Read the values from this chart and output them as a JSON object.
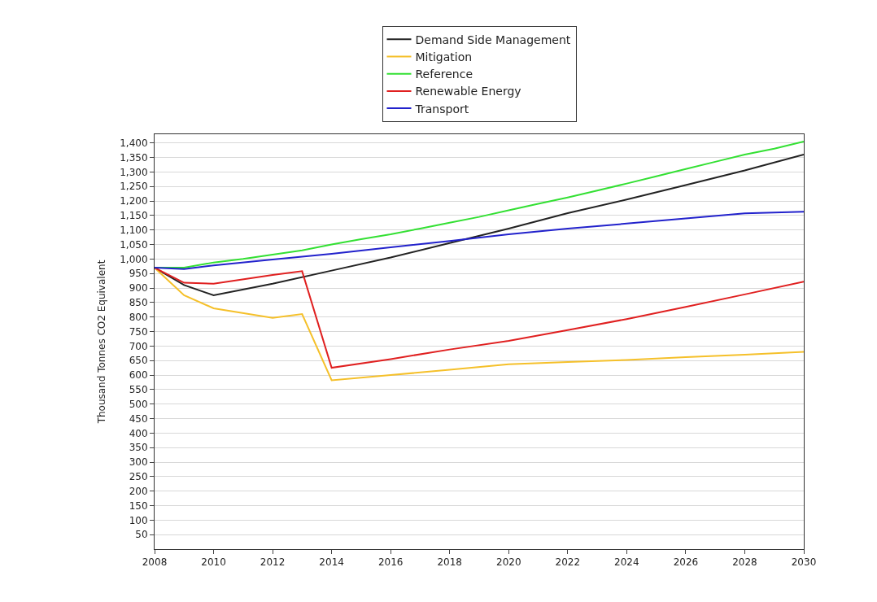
{
  "chart_data": {
    "type": "line",
    "ylabel": "Thousand Tonnes CO2 Equivalent",
    "xlim": [
      2008,
      2030
    ],
    "xticks": [
      2008,
      2010,
      2012,
      2014,
      2016,
      2018,
      2020,
      2022,
      2024,
      2026,
      2028,
      2030
    ],
    "ylim": [
      0,
      1430
    ],
    "yticks": [
      {
        "value": 50,
        "label": "50"
      },
      {
        "value": 100,
        "label": "100"
      },
      {
        "value": 150,
        "label": "150"
      },
      {
        "value": 200,
        "label": "200"
      },
      {
        "value": 250,
        "label": "250"
      },
      {
        "value": 300,
        "label": "300"
      },
      {
        "value": 350,
        "label": "350"
      },
      {
        "value": 400,
        "label": "400"
      },
      {
        "value": 450,
        "label": "450"
      },
      {
        "value": 500,
        "label": "500"
      },
      {
        "value": 550,
        "label": "550"
      },
      {
        "value": 600,
        "label": "600"
      },
      {
        "value": 650,
        "label": "650"
      },
      {
        "value": 700,
        "label": "700"
      },
      {
        "value": 750,
        "label": "750"
      },
      {
        "value": 800,
        "label": "800"
      },
      {
        "value": 850,
        "label": "850"
      },
      {
        "value": 900,
        "label": "900"
      },
      {
        "value": 950,
        "label": "950"
      },
      {
        "value": 1000,
        "label": "1,000"
      },
      {
        "value": 1050,
        "label": "1,050"
      },
      {
        "value": 1100,
        "label": "1,100"
      },
      {
        "value": 1150,
        "label": "1,150"
      },
      {
        "value": 1200,
        "label": "1,200"
      },
      {
        "value": 1250,
        "label": "1,250"
      },
      {
        "value": 1300,
        "label": "1,300"
      },
      {
        "value": 1350,
        "label": "1,350"
      },
      {
        "value": 1400,
        "label": "1,400"
      }
    ],
    "grid": "y",
    "legend": "top",
    "marker": "none",
    "line_style": "solid",
    "series": [
      {
        "name": "Demand Side Management",
        "color": "#222222",
        "x": [
          2008,
          2009,
          2010,
          2012,
          2014,
          2016,
          2018,
          2020,
          2022,
          2024,
          2026,
          2028,
          2030
        ],
        "values": [
          970,
          910,
          875,
          915,
          960,
          1005,
          1055,
          1105,
          1158,
          1205,
          1255,
          1305,
          1360
        ]
      },
      {
        "name": "Mitigation",
        "color": "#f5c02a",
        "x": [
          2008,
          2009,
          2010,
          2012,
          2013,
          2014,
          2016,
          2018,
          2020,
          2022,
          2024,
          2026,
          2028,
          2030
        ],
        "values": [
          970,
          875,
          830,
          797,
          810,
          582,
          600,
          618,
          637,
          645,
          652,
          662,
          670,
          680
        ]
      },
      {
        "name": "Reference",
        "color": "#33e033",
        "x": [
          2008,
          2009,
          2010,
          2011,
          2012,
          2013,
          2014,
          2015,
          2016,
          2017,
          2018,
          2019,
          2020,
          2021,
          2022,
          2023,
          2024,
          2025,
          2026,
          2027,
          2028,
          2029,
          2030
        ],
        "values": [
          970,
          970,
          988,
          1000,
          1015,
          1030,
          1050,
          1068,
          1085,
          1105,
          1125,
          1145,
          1168,
          1190,
          1212,
          1236,
          1260,
          1285,
          1310,
          1335,
          1360,
          1380,
          1405
        ]
      },
      {
        "name": "Renewable Energy",
        "color": "#e02020",
        "x": [
          2008,
          2009,
          2010,
          2012,
          2013,
          2014,
          2016,
          2018,
          2020,
          2022,
          2024,
          2026,
          2028,
          2030
        ],
        "values": [
          970,
          918,
          915,
          945,
          958,
          625,
          655,
          688,
          718,
          755,
          793,
          835,
          878,
          922
        ]
      },
      {
        "name": "Transport",
        "color": "#2222cc",
        "x": [
          2008,
          2009,
          2010,
          2012,
          2014,
          2016,
          2018,
          2020,
          2022,
          2024,
          2026,
          2028,
          2030
        ],
        "values": [
          970,
          965,
          978,
          998,
          1018,
          1040,
          1062,
          1085,
          1105,
          1122,
          1140,
          1157,
          1163
        ]
      }
    ]
  }
}
